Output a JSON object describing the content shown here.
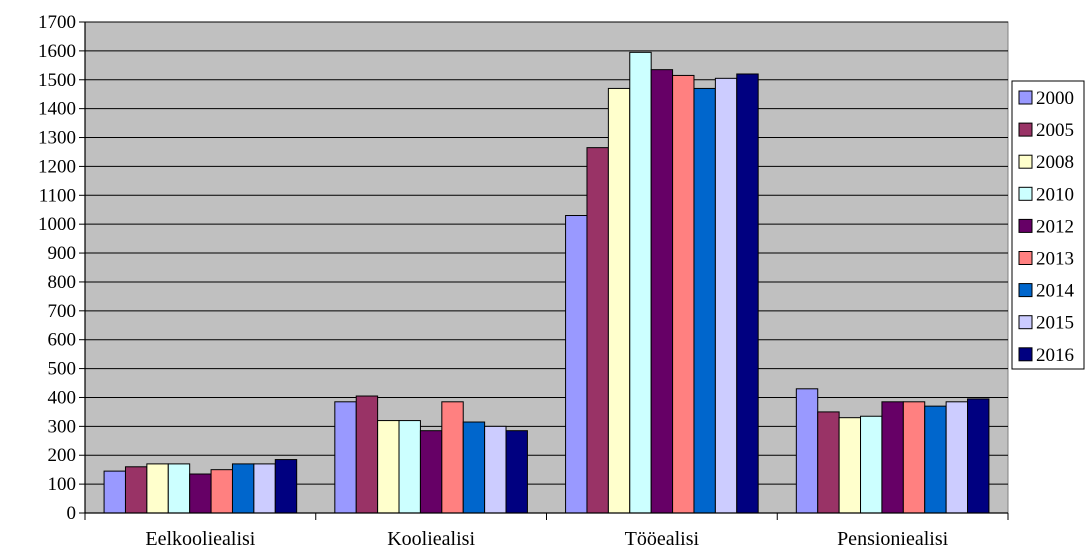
{
  "chart_data": {
    "type": "bar",
    "title": "",
    "xlabel": "",
    "ylabel": "",
    "ylim": [
      0,
      1700
    ],
    "yticks": [
      0,
      100,
      200,
      300,
      400,
      500,
      600,
      700,
      800,
      900,
      1000,
      1100,
      1200,
      1300,
      1400,
      1500,
      1600,
      1700
    ],
    "grid": true,
    "legend_position": "right",
    "plot_background": "#c0c0c0",
    "categories": [
      "Eelkooliealisi",
      "Kooliealisi",
      "Tööealisi",
      "Pensioniealisi"
    ],
    "series": [
      {
        "name": "2000",
        "color": "#9999ff",
        "values": [
          145,
          385,
          1030,
          430
        ]
      },
      {
        "name": "2005",
        "color": "#993366",
        "values": [
          160,
          405,
          1265,
          350
        ]
      },
      {
        "name": "2008",
        "color": "#ffffcc",
        "values": [
          170,
          320,
          1470,
          330
        ]
      },
      {
        "name": "2010",
        "color": "#ccffff",
        "values": [
          170,
          320,
          1595,
          335
        ]
      },
      {
        "name": "2012",
        "color": "#660066",
        "values": [
          135,
          285,
          1535,
          385
        ]
      },
      {
        "name": "2013",
        "color": "#ff8080",
        "values": [
          150,
          385,
          1515,
          385
        ]
      },
      {
        "name": "2014",
        "color": "#0066cc",
        "values": [
          170,
          315,
          1470,
          370
        ]
      },
      {
        "name": "2015",
        "color": "#ccccff",
        "values": [
          170,
          300,
          1505,
          385
        ]
      },
      {
        "name": "2016",
        "color": "#000080",
        "values": [
          185,
          285,
          1520,
          395
        ]
      }
    ]
  }
}
